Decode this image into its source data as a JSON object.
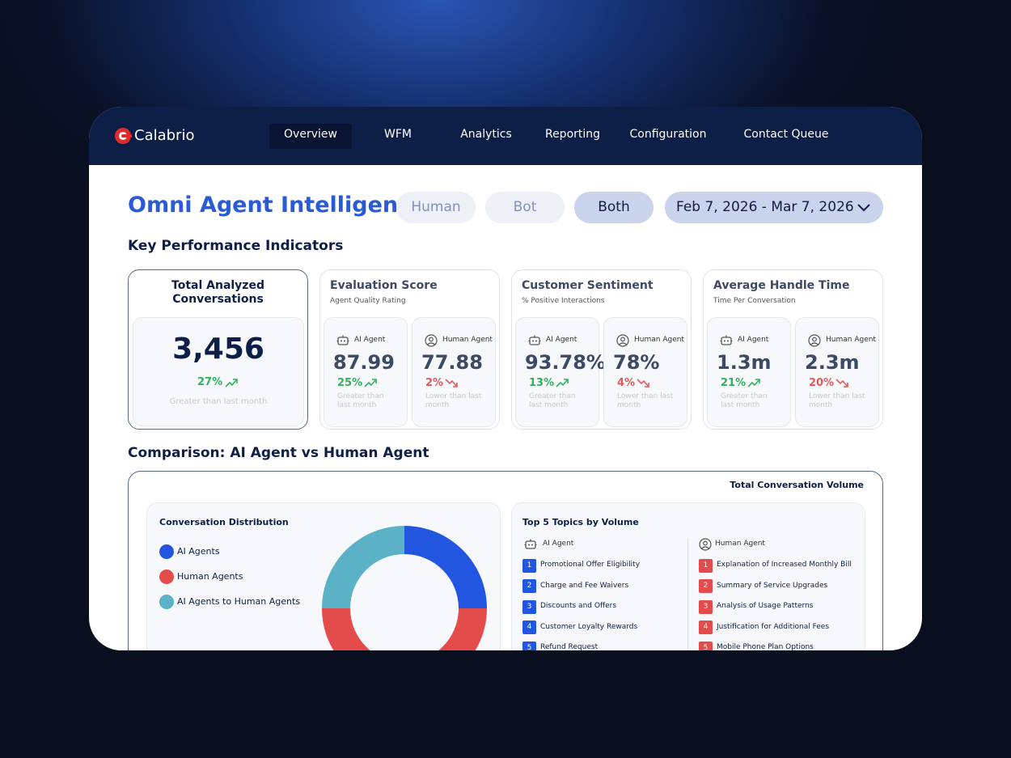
{
  "nav": {
    "brand": "Calabrio",
    "items": [
      "Overview",
      "WFM",
      "Analytics",
      "Reporting",
      "Configuration",
      "Contact Queue"
    ],
    "active": 0
  },
  "page": {
    "title": "Omni Agent Intelligence",
    "filters": [
      "Human",
      "Bot",
      "Both"
    ],
    "active_filter": 2,
    "date_range": "Feb 7, 2026 - Mar 7, 2026"
  },
  "kpi": {
    "heading": "Key Performance Indicators",
    "total": {
      "title": "Total Analyzed Conversations",
      "value": "3,456",
      "change": "27%",
      "note": "Greater than last month"
    },
    "cards": [
      {
        "title": "Evaluation Score",
        "subtitle": "Agent Quality Rating",
        "agents": [
          {
            "label": "AI Agent",
            "value": "87.99",
            "change": "25%",
            "trend": "up",
            "note": "Greater than last month"
          },
          {
            "label": "Human Agent",
            "value": "77.88",
            "change": "2%",
            "trend": "down",
            "note": "Lower than last month"
          }
        ]
      },
      {
        "title": "Customer Sentiment",
        "subtitle": "% Positive Interactions",
        "agents": [
          {
            "label": "AI Agent",
            "value": "93.78%",
            "change": "13%",
            "trend": "up",
            "note": "Greater than last month"
          },
          {
            "label": "Human Agent",
            "value": "78%",
            "change": "4%",
            "trend": "down",
            "note": "Lower than last month"
          }
        ]
      },
      {
        "title": "Average Handle Time",
        "subtitle": "Time Per Conversation",
        "agents": [
          {
            "label": "AI Agent",
            "value": "1.3m",
            "change": "21%",
            "trend": "up",
            "note": "Greater than last month"
          },
          {
            "label": "Human Agent",
            "value": "2.3m",
            "change": "20%",
            "trend": "down",
            "note": "Lower than last month"
          }
        ]
      }
    ]
  },
  "comparison": {
    "heading": "Comparison: AI Agent vs Human Agent",
    "volume_label": "Total Conversation Volume",
    "distribution": {
      "type": "pie",
      "title": "Conversation Distribution",
      "categories": [
        "AI Agents",
        "Human Agents",
        "AI Agents to Human Agents"
      ],
      "values": [
        25,
        50,
        25
      ],
      "colors": [
        "#2356e0",
        "#e44c4c",
        "#5bb1c6"
      ]
    },
    "topics": {
      "title": "Top 5 Topics by Volume",
      "groups": [
        {
          "label": "AI Agent",
          "items": [
            {
              "rank": "1",
              "label": "Promotional Offer Eligibility"
            },
            {
              "rank": "2",
              "label": "Charge and Fee Waivers"
            },
            {
              "rank": "3",
              "label": "Discounts and Offers"
            },
            {
              "rank": "4",
              "label": "Customer Loyalty Rewards"
            },
            {
              "rank": "5",
              "label": "Refund Request"
            }
          ]
        },
        {
          "label": "Human Agent",
          "items": [
            {
              "rank": "1",
              "label": "Explanation of Increased Monthly Bill"
            },
            {
              "rank": "2",
              "label": "Summary of Service Upgrades"
            },
            {
              "rank": "3",
              "label": "Analysis of Usage Patterns"
            },
            {
              "rank": "4",
              "label": "Justification for Additional Fees"
            },
            {
              "rank": "5",
              "label": "Mobile Phone Plan Options"
            }
          ]
        }
      ]
    }
  }
}
